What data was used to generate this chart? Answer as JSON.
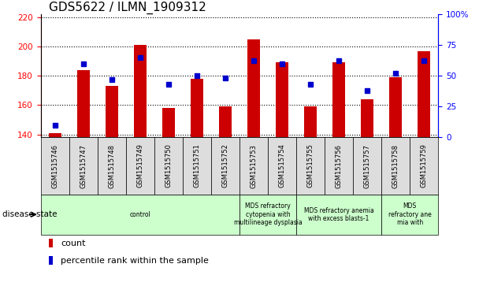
{
  "title": "GDS5622 / ILMN_1909312",
  "samples": [
    "GSM1515746",
    "GSM1515747",
    "GSM1515748",
    "GSM1515749",
    "GSM1515750",
    "GSM1515751",
    "GSM1515752",
    "GSM1515753",
    "GSM1515754",
    "GSM1515755",
    "GSM1515756",
    "GSM1515757",
    "GSM1515758",
    "GSM1515759"
  ],
  "counts": [
    141,
    184,
    173,
    201,
    158,
    178,
    159,
    205,
    189,
    159,
    189,
    164,
    179,
    197
  ],
  "percentile_ranks": [
    10,
    60,
    47,
    65,
    43,
    50,
    48,
    62,
    60,
    43,
    62,
    38,
    52,
    62
  ],
  "ylim_left": [
    138,
    222
  ],
  "ylim_right": [
    0,
    100
  ],
  "yticks_left": [
    140,
    160,
    180,
    200,
    220
  ],
  "yticks_right": [
    0,
    25,
    50,
    75,
    100
  ],
  "bar_color": "#cc0000",
  "dot_color": "#0000cc",
  "bar_bottom": 138,
  "disease_groups": [
    {
      "label": "control",
      "start": 0,
      "end": 7,
      "color": "#ccffcc"
    },
    {
      "label": "MDS refractory\ncytopenia with\nmultilineage dysplasia",
      "start": 7,
      "end": 9,
      "color": "#ccffcc"
    },
    {
      "label": "MDS refractory anemia\nwith excess blasts-1",
      "start": 9,
      "end": 12,
      "color": "#ccffcc"
    },
    {
      "label": "MDS\nrefractory ane\nmia with",
      "start": 12,
      "end": 14,
      "color": "#ccffcc"
    }
  ],
  "disease_state_label": "disease state",
  "sample_bg_color": "#dddddd",
  "title_fontsize": 11,
  "axis_label_fontsize": 8,
  "tick_fontsize": 7.5,
  "legend_fontsize": 8
}
